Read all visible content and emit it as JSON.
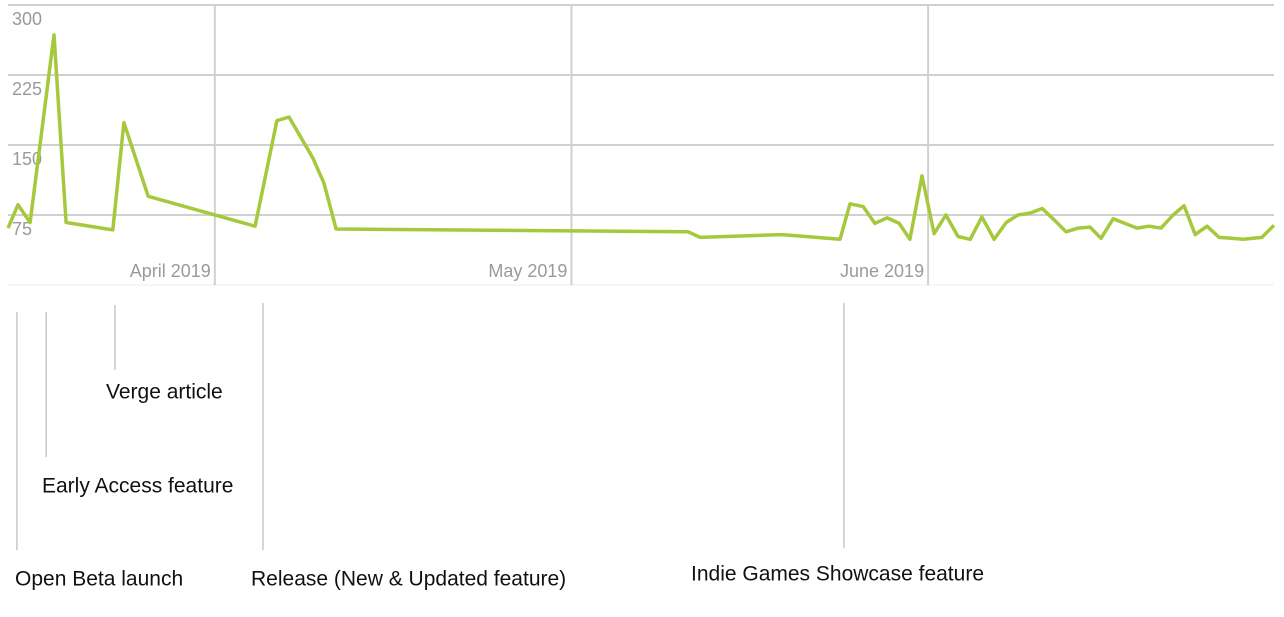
{
  "chart_data": {
    "type": "line",
    "x": [
      3.42,
      3.448,
      3.482,
      3.515,
      3.549,
      3.583,
      3.714,
      3.745,
      3.813,
      4.113,
      4.174,
      4.208,
      4.275,
      4.306,
      4.34,
      5.327,
      5.361,
      5.591,
      5.753,
      5.781,
      5.818,
      5.851,
      5.885,
      5.919,
      5.949,
      5.983,
      6.017,
      6.05,
      6.084,
      6.118,
      6.151,
      6.185,
      6.219,
      6.252,
      6.286,
      6.32,
      6.353,
      6.387,
      6.421,
      6.454,
      6.485,
      6.519,
      6.552,
      6.586,
      6.62,
      6.653,
      6.687,
      6.718,
      6.749,
      6.782,
      6.816,
      6.85,
      6.883,
      6.936,
      6.97
    ],
    "values": [
      61,
      86,
      67,
      166,
      268,
      67,
      59,
      174,
      95,
      63,
      176,
      180,
      136,
      109,
      60,
      57,
      51,
      54,
      49,
      87,
      84,
      66,
      72,
      66,
      49,
      117,
      55,
      75,
      52,
      49,
      73,
      49,
      67,
      75,
      77,
      82,
      70,
      57,
      61,
      62,
      50,
      71,
      66,
      61,
      63,
      61,
      75,
      85,
      54,
      63,
      51,
      50,
      49,
      51,
      64
    ],
    "color": "#a6c83c",
    "xlim": [
      3.42,
      6.97
    ],
    "xticks": [
      {
        "value": 4,
        "label": "April 2019"
      },
      {
        "value": 5,
        "label": "May 2019"
      },
      {
        "value": 6,
        "label": "June 2019"
      }
    ],
    "ylim": [
      0,
      300
    ],
    "yticks": [
      75,
      150,
      225,
      300
    ],
    "grid": true,
    "annotations": [
      {
        "text": "Open Beta launch",
        "x": 3.445
      },
      {
        "text": "Early Access feature",
        "x": 3.527
      },
      {
        "text": "Verge article",
        "x": 3.72
      },
      {
        "text": "Release (New & Updated feature)",
        "x": 4.135
      },
      {
        "text": "Indie Games Showcase feature",
        "x": 5.764
      }
    ]
  }
}
